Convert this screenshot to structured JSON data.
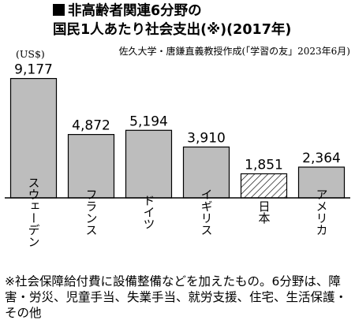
{
  "header": {
    "title_line1": "非高齢者関連6分野の",
    "title_line2": "国民1人あたり社会支出(※)(2017年)",
    "source": "佐久大学・唐鎌直義教授作成(「学習の友」2023年6月)",
    "unit": "(US$)"
  },
  "chart_data": {
    "type": "bar",
    "categories": [
      "スウェーデン",
      "フランス",
      "ドイツ",
      "イギリス",
      "日本",
      "アメリカ"
    ],
    "values": [
      9177,
      4872,
      5194,
      3910,
      1851,
      2364
    ],
    "value_labels": [
      "9,177",
      "4,872",
      "5,194",
      "3,910",
      "1,851",
      "2,364"
    ],
    "ylim": [
      0,
      10000
    ],
    "highlight": {
      "category": "日本",
      "pattern": "hatched"
    },
    "colors": {
      "bar": "#bdbdbd",
      "highlight_bar": "#ffffff",
      "stroke": "#000000"
    }
  },
  "footnote": "※社会保障給付費に設備整備などを加えたもの。6分野は、障害・労災、児童手当、失業手当、就労支援、住宅、生活保護・その他"
}
